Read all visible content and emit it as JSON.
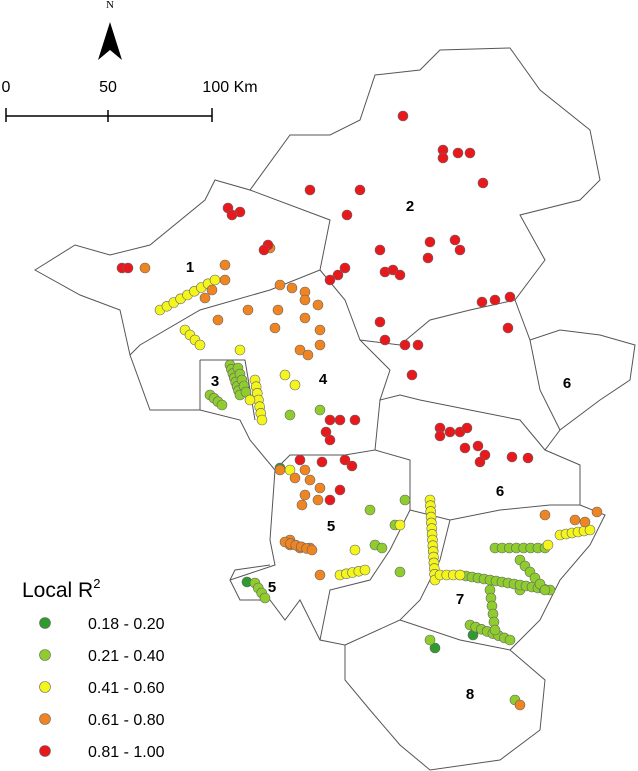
{
  "map": {
    "north": "N",
    "scale_bar": {
      "labels": [
        "0",
        "50",
        "100 Km"
      ]
    },
    "regions": [
      "1",
      "2",
      "3",
      "4",
      "5",
      "5",
      "6",
      "6",
      "7",
      "8"
    ],
    "legend": {
      "title": "Local R",
      "title_sup": "2",
      "classes": [
        {
          "label": "0.18 - 0.20",
          "color": "#2f9a2f"
        },
        {
          "label": "0.21 - 0.40",
          "color": "#8fcc2e"
        },
        {
          "label": "0.41 - 0.60",
          "color": "#f5f51e"
        },
        {
          "label": "0.61 - 0.80",
          "color": "#ef8522"
        },
        {
          "label": "0.81 - 1.00",
          "color": "#e8191c"
        }
      ]
    }
  }
}
